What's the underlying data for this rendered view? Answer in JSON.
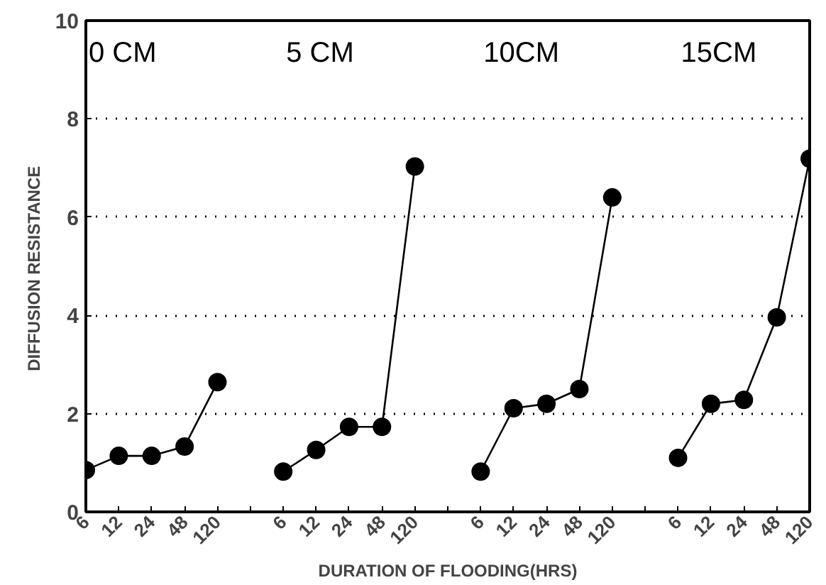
{
  "chart_data": {
    "type": "line",
    "xlabel": "DURATION OF FLOODING(HRS)",
    "ylabel": "DIFFUSION  RESISTANCE",
    "categories": [
      "6",
      "12",
      "24",
      "48",
      "120",
      null,
      "6",
      "12",
      "24",
      "48",
      "120",
      null,
      "6",
      "12",
      "24",
      "48",
      "120",
      null,
      "6",
      "12",
      "24",
      "48",
      "120"
    ],
    "series": [
      {
        "color": "#000000",
        "values": [
          0.85,
          1.14,
          1.14,
          1.33,
          2.64,
          null,
          null,
          null,
          null,
          null,
          null,
          null,
          null,
          null,
          null,
          null,
          null,
          null,
          null,
          null,
          null,
          null,
          null
        ]
      },
      {
        "color": "#000000",
        "values": [
          null,
          null,
          null,
          null,
          null,
          null,
          0.82,
          1.26,
          1.73,
          1.73,
          7.03,
          null,
          null,
          null,
          null,
          null,
          null,
          null,
          null,
          null,
          null,
          null,
          null
        ]
      },
      {
        "color": "#000000",
        "values": [
          null,
          null,
          null,
          null,
          null,
          null,
          null,
          null,
          null,
          null,
          null,
          null,
          0.82,
          2.11,
          2.2,
          2.5,
          6.4,
          null,
          null,
          null,
          null,
          null,
          null
        ]
      },
      {
        "color": "#000000",
        "values": [
          null,
          null,
          null,
          null,
          null,
          null,
          null,
          null,
          null,
          null,
          null,
          null,
          null,
          null,
          null,
          null,
          null,
          null,
          1.1,
          2.2,
          2.28,
          3.96,
          7.19
        ]
      }
    ],
    "ylim": [
      0,
      10
    ],
    "yticks": [
      0,
      2,
      4,
      6,
      8,
      10
    ],
    "grid": "y",
    "marker": "circle",
    "line_style": "solid",
    "annotations": [
      "0 CM",
      "5 CM",
      "10CM",
      "15CM"
    ]
  }
}
